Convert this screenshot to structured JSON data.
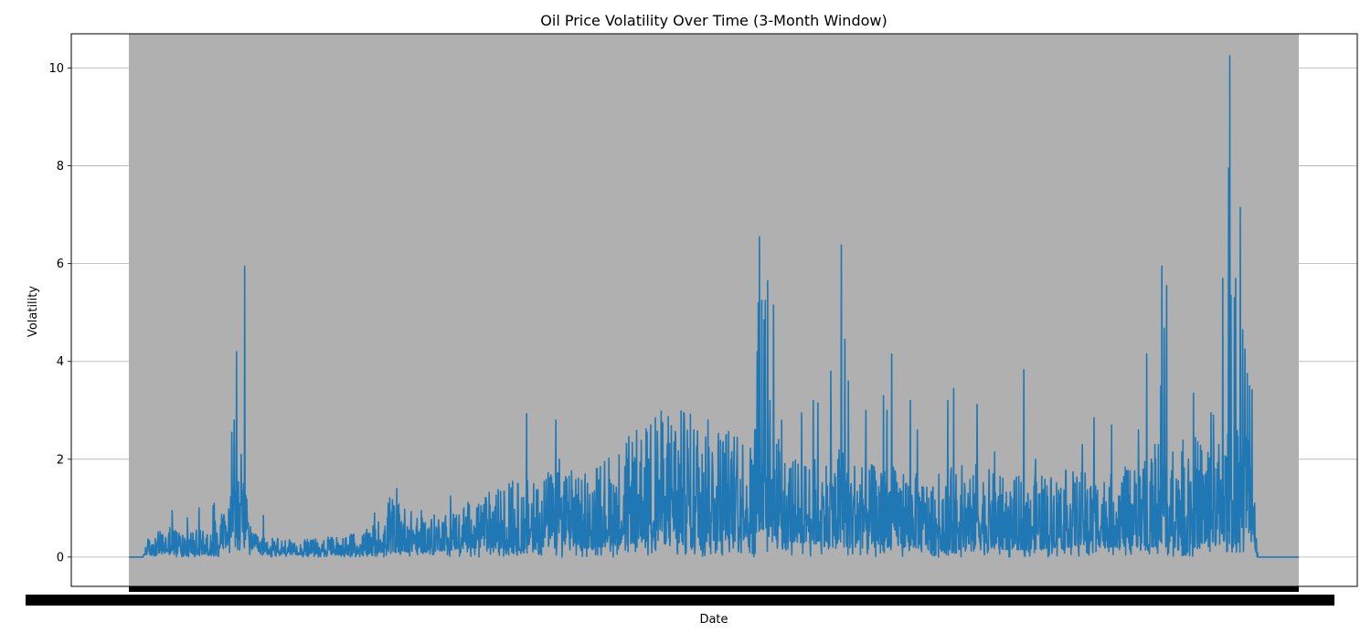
{
  "chart_data": {
    "type": "line",
    "title": "Oil Price Volatility Over Time (3-Month Window)",
    "xlabel": "Date",
    "ylabel": "Volatility",
    "ylim": [
      -0.6,
      10.7
    ],
    "yticks": [
      0,
      2,
      4,
      6,
      8,
      10
    ],
    "grid": "horizontal",
    "legend": "none",
    "colors": {
      "line": "#1f77b4",
      "shaded_region": "#b0b0b0",
      "grid": "#b0b0b0"
    },
    "x_tick_labels": "dense overlapping date labels (one per observation), illegible",
    "x_index_range": [
      0,
      1000
    ],
    "shaded_span": [
      0,
      1000
    ],
    "series": [
      {
        "profile_x": [
          0,
          12,
          15,
          20,
          40,
          60,
          70,
          85,
          88,
          93,
          96,
          99,
          102,
          105,
          115,
          150,
          200,
          220,
          222,
          250,
          280,
          300,
          340,
          350,
          360,
          382,
          400,
          420,
          440,
          460,
          480,
          500,
          520,
          530,
          535,
          541,
          545,
          550,
          556,
          560,
          570,
          600,
          610,
          611,
          630,
          650,
          668,
          680,
          700,
          720,
          750,
          770,
          800,
          830,
          860,
          880,
          895,
          900,
          910,
          920,
          935,
          940,
          943,
          945,
          950,
          957,
          960,
          965,
          980,
          1000
        ],
        "profile_lo": [
          0,
          0,
          0.05,
          0.05,
          0.05,
          0.05,
          0.05,
          0.3,
          0.3,
          0.3,
          0.2,
          0.3,
          0.3,
          0.15,
          0.05,
          0.05,
          0.05,
          0.1,
          0.1,
          0.1,
          0.15,
          0.2,
          0.1,
          0.2,
          0.2,
          0.2,
          0.2,
          0.25,
          0.3,
          0.3,
          0.2,
          0.3,
          0.4,
          0.3,
          0.4,
          0.5,
          0.4,
          0.3,
          0.5,
          0.3,
          0.3,
          0.2,
          0.2,
          0.2,
          0.2,
          0.2,
          0.2,
          0.15,
          0.15,
          0.15,
          0.15,
          0.15,
          0.2,
          0.2,
          0.2,
          0.2,
          0.2,
          0.2,
          0.2,
          0.2,
          0.3,
          0.3,
          0.3,
          0.3,
          0.3,
          0.3,
          0.3,
          0,
          0,
          0
        ],
        "profile_hi": [
          0,
          0,
          0.35,
          0.5,
          0.6,
          0.55,
          0.6,
          1.2,
          1.5,
          1.7,
          1.5,
          1.4,
          1.2,
          0.5,
          0.4,
          0.35,
          0.5,
          0.9,
          1.3,
          0.8,
          1.0,
          1.3,
          1.6,
          1.7,
          1.8,
          1.8,
          2.0,
          2.3,
          2.8,
          3.1,
          3.0,
          2.8,
          2.7,
          2.6,
          2.6,
          2.8,
          2.6,
          2.4,
          2.6,
          2.2,
          2.0,
          2.1,
          2.4,
          2.2,
          1.9,
          1.9,
          1.8,
          1.6,
          1.8,
          2.0,
          1.6,
          1.7,
          1.8,
          1.7,
          1.9,
          2.1,
          2.3,
          2.4,
          2.5,
          2.5,
          2.4,
          2.6,
          2.9,
          3.0,
          3.0,
          2.8,
          2.6,
          0,
          0,
          0
        ],
        "spikes": [
          [
            35,
            0.6
          ],
          [
            37,
            0.95
          ],
          [
            50,
            0.8
          ],
          [
            60,
            1.0
          ],
          [
            72,
            1.05
          ],
          [
            73,
            1.1
          ],
          [
            88,
            2.55
          ],
          [
            90,
            2.8
          ],
          [
            92,
            4.2
          ],
          [
            96,
            2.1
          ],
          [
            99,
            5.95
          ],
          [
            98,
            1.5
          ],
          [
            115,
            0.85
          ],
          [
            210,
            0.9
          ],
          [
            229,
            1.4
          ],
          [
            250,
            0.95
          ],
          [
            275,
            1.25
          ],
          [
            325,
            1.5
          ],
          [
            328,
            1.55
          ],
          [
            340,
            2.93
          ],
          [
            346,
            1.5
          ],
          [
            365,
            2.8
          ],
          [
            368,
            2.0
          ],
          [
            403,
            1.85
          ],
          [
            450,
            2.85
          ],
          [
            466,
            2.35
          ],
          [
            490,
            2.1
          ],
          [
            495,
            2.8
          ],
          [
            520,
            2.45
          ],
          [
            535,
            2.6
          ],
          [
            537,
            4.2
          ],
          [
            538,
            5.2
          ],
          [
            539,
            6.55
          ],
          [
            541,
            5.25
          ],
          [
            543,
            4.85
          ],
          [
            544,
            5.25
          ],
          [
            546,
            5.65
          ],
          [
            548,
            3.2
          ],
          [
            551,
            5.15
          ],
          [
            558,
            2.8
          ],
          [
            575,
            2.95
          ],
          [
            585,
            3.2
          ],
          [
            589,
            3.15
          ],
          [
            600,
            3.8
          ],
          [
            609,
            6.38
          ],
          [
            612,
            4.45
          ],
          [
            615,
            3.6
          ],
          [
            630,
            3.0
          ],
          [
            645,
            3.3
          ],
          [
            648,
            3.0
          ],
          [
            652,
            4.15
          ],
          [
            668,
            3.2
          ],
          [
            674,
            2.6
          ],
          [
            700,
            3.2
          ],
          [
            705,
            3.45
          ],
          [
            725,
            3.12
          ],
          [
            740,
            2.15
          ],
          [
            765,
            3.83
          ],
          [
            775,
            2.0
          ],
          [
            815,
            2.3
          ],
          [
            825,
            2.85
          ],
          [
            840,
            2.7
          ],
          [
            863,
            2.6
          ],
          [
            870,
            4.15
          ],
          [
            877,
            2.3
          ],
          [
            880,
            2.3
          ],
          [
            882,
            3.5
          ],
          [
            883,
            5.95
          ],
          [
            885,
            4.68
          ],
          [
            887,
            5.55
          ],
          [
            900,
            2.15
          ],
          [
            910,
            3.35
          ],
          [
            925,
            2.95
          ],
          [
            927,
            2.9
          ],
          [
            935,
            5.7
          ],
          [
            940,
            7.95
          ],
          [
            941,
            10.25
          ],
          [
            942,
            5.35
          ],
          [
            945,
            5.3
          ],
          [
            946,
            5.7
          ],
          [
            950,
            7.15
          ],
          [
            952,
            4.65
          ],
          [
            954,
            4.25
          ],
          [
            956,
            3.75
          ],
          [
            958,
            3.5
          ],
          [
            960,
            3.42
          ]
        ]
      }
    ]
  }
}
